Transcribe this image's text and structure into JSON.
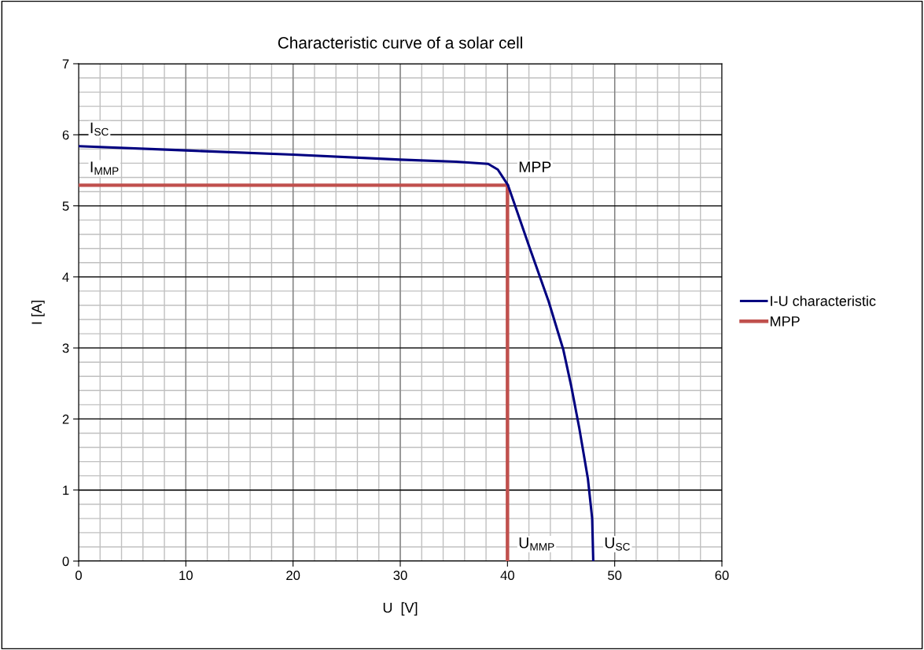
{
  "chart_data": {
    "type": "line",
    "title": "Characteristic curve of a solar cell",
    "xlabel": "U  [V]",
    "ylabel": "I [A]",
    "series": [
      {
        "name": "I-U characteristic",
        "color": "#000080",
        "x": [
          0,
          10,
          20,
          30,
          35.2,
          38.2,
          39.1,
          40.05,
          42.0,
          43.85,
          45.2,
          45.95,
          46.7,
          47.5,
          47.9,
          48.0
        ],
        "values": [
          5.84,
          5.78,
          5.72,
          5.65,
          5.62,
          5.59,
          5.51,
          5.29,
          4.44,
          3.65,
          2.98,
          2.46,
          1.87,
          1.16,
          0.6,
          0.0
        ]
      },
      {
        "name": "MPP",
        "color": "#c0504d",
        "x": [
          0,
          40,
          40
        ],
        "values": [
          5.29,
          5.29,
          0
        ]
      }
    ],
    "annotations": [
      {
        "text": "I$_{SC}$",
        "x": 0,
        "y": 5.84
      },
      {
        "text": "I$_{MMP}$",
        "x": 0,
        "y": 5.29
      },
      {
        "text": "MPP",
        "x": 40,
        "y": 5.29
      },
      {
        "text": "U$_{MMP}$",
        "x": 40,
        "y": 0
      },
      {
        "text": "U$_{SC}$",
        "x": 48,
        "y": 0
      }
    ],
    "xlim": [
      0,
      60
    ],
    "ylim": [
      0,
      7
    ],
    "xticks": [
      0,
      10,
      20,
      30,
      40,
      50,
      60
    ],
    "yticks": [
      0,
      1,
      2,
      3,
      4,
      5,
      6,
      7
    ],
    "grid": true,
    "legend": "right",
    "marker": "none",
    "line_style": "solid"
  }
}
